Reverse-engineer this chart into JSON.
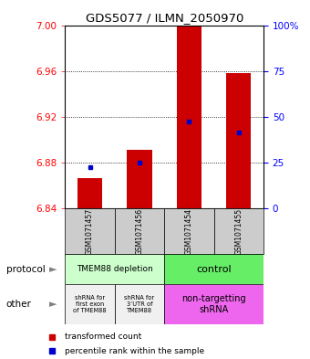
{
  "title": "GDS5077 / ILMN_2050970",
  "samples": [
    "GSM1071457",
    "GSM1071456",
    "GSM1071454",
    "GSM1071455"
  ],
  "bar_bottoms": [
    6.84,
    6.84,
    6.84,
    6.84
  ],
  "bar_tops": [
    6.866,
    6.891,
    7.0,
    6.958
  ],
  "percentile_values": [
    6.876,
    6.88,
    6.916,
    6.906
  ],
  "y_min": 6.84,
  "y_max": 7.0,
  "y_ticks_left": [
    6.84,
    6.88,
    6.92,
    6.96,
    7.0
  ],
  "y_ticks_right": [
    0,
    25,
    50,
    75,
    100
  ],
  "bar_color": "#cc0000",
  "percentile_color": "#0000cc",
  "protocol_labels": [
    "TMEM88 depletion",
    "control"
  ],
  "protocol_colors": [
    "#ccffcc",
    "#66ee66"
  ],
  "other_labels_left": [
    "shRNA for\nfirst exon\nof TMEM88",
    "shRNA for\n3’UTR of\nTMEM88"
  ],
  "other_label_right": "non-targetting\nshRNA",
  "other_color_left": "#f0f0f0",
  "other_color_right": "#ee66ee",
  "sample_box_color": "#cccccc",
  "legend_red_label": "transformed count",
  "legend_blue_label": "percentile rank within the sample",
  "protocol_row_label": "protocol",
  "other_row_label": "other"
}
